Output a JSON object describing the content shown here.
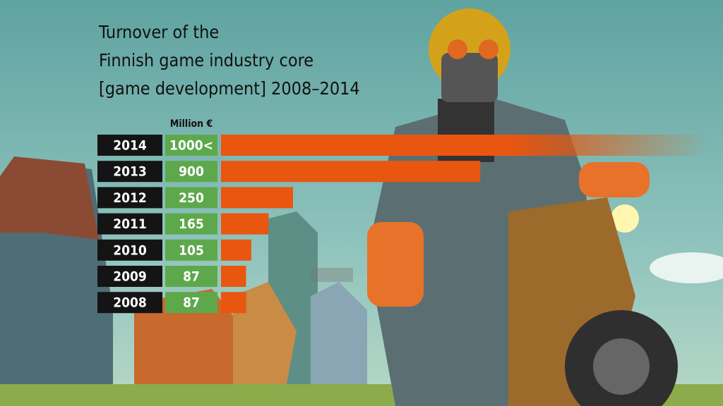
{
  "chart_data": {
    "type": "bar",
    "orientation": "horizontal",
    "title_lines": [
      "Turnover of the",
      "Finnish game industry core",
      "[game development] 2008–2014"
    ],
    "unit_label": "Million €",
    "categories": [
      "2014",
      "2013",
      "2012",
      "2011",
      "2010",
      "2009",
      "2008"
    ],
    "values": [
      1000,
      900,
      250,
      165,
      105,
      87,
      87
    ],
    "value_labels": [
      "1000<",
      "900",
      "250",
      "165",
      "105",
      "87",
      "87"
    ],
    "color": "#e8560f"
  }
}
